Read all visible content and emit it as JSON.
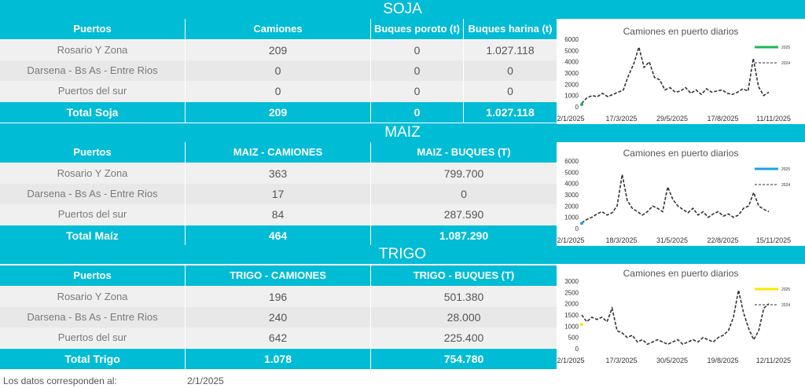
{
  "colors": {
    "accent": "#00bcd4",
    "soja_2025": "#1db954",
    "maiz_2025": "#1aa3e8",
    "trigo_2025": "#ffe600",
    "series_2024": "#333333"
  },
  "soja": {
    "title": "SOJA",
    "headers": [
      "Puertos",
      "Camiones",
      "Buques poroto (t)",
      "Buques harina (t)"
    ],
    "rows": [
      [
        "Rosario Y Zona",
        "209",
        "0",
        "1.027.118"
      ],
      [
        "Darsena - Bs As - Entre Rios",
        "0",
        "0",
        "0"
      ],
      [
        "Puertos del sur",
        "0",
        "0",
        "0"
      ]
    ],
    "total": [
      "Total Soja",
      "209",
      "0",
      "1.027.118"
    ]
  },
  "maiz": {
    "title": "MAIZ",
    "headers": [
      "Puertos",
      "MAIZ - CAMIONES",
      "MAIZ - BUQUES (T)"
    ],
    "rows": [
      [
        "Rosario Y Zona",
        "363",
        "799.700"
      ],
      [
        "Darsena - Bs As - Entre Rios",
        "17",
        "0"
      ],
      [
        "Puertos del sur",
        "84",
        "287.590"
      ]
    ],
    "total": [
      "Total Maíz",
      "464",
      "1.087.290"
    ]
  },
  "trigo": {
    "title": "TRIGO",
    "headers": [
      "Puertos",
      "TRIGO - CAMIONES",
      "TRIGO - BUQUES (T)"
    ],
    "rows": [
      [
        "Rosario Y Zona",
        "196",
        "501.380"
      ],
      [
        "Darsena - Bs As - Entre Rios",
        "240",
        "28.000"
      ],
      [
        "Puertos del sur",
        "642",
        "225.400"
      ]
    ],
    "total": [
      "Total Trigo",
      "1.078",
      "754.780"
    ]
  },
  "footer": {
    "label": "Los datos corresponden al:",
    "date": "2/1/2025"
  },
  "chart_data": [
    {
      "type": "line",
      "title": "Camiones en puerto diarios",
      "ylim": [
        0,
        6000
      ],
      "yticks": [
        "0",
        "1000",
        "2000",
        "3000",
        "4000",
        "5000",
        "6000"
      ],
      "xticks": [
        "2/1/2025",
        "17/3/2025",
        "29/5/2025",
        "17/8/2025",
        "11/11/2025"
      ],
      "legend": [
        "2025",
        "2024"
      ],
      "legend_position": "top-right",
      "series": [
        {
          "name": "2025",
          "values": [
            209
          ]
        },
        {
          "name": "2024",
          "values": [
            300,
            800,
            1000,
            900,
            1200,
            900,
            1100,
            1300,
            1500,
            2800,
            3800,
            5300,
            3500,
            4000,
            2600,
            2400,
            1500,
            1700,
            1300,
            1400,
            1700,
            1200,
            1500,
            1100,
            1600,
            1300,
            1400,
            1500,
            1200,
            1100,
            1300,
            1600,
            1400,
            4300,
            1800,
            1000,
            1300
          ]
        }
      ]
    },
    {
      "type": "line",
      "title": "Camiones en puerto diarios",
      "ylim": [
        0,
        6000
      ],
      "yticks": [
        "0",
        "1000",
        "2000",
        "3000",
        "4000",
        "5000",
        "6000"
      ],
      "xticks": [
        "2/1/2025",
        "18/3/2025",
        "31/5/2025",
        "22/8/2025",
        "15/11/2025"
      ],
      "legend": [
        "2025",
        "2024"
      ],
      "legend_position": "top-right",
      "series": [
        {
          "name": "2025",
          "values": [
            464
          ]
        },
        {
          "name": "2024",
          "values": [
            500,
            800,
            1000,
            1300,
            1500,
            1200,
            1400,
            2000,
            4800,
            2500,
            1800,
            1500,
            1200,
            1500,
            2000,
            1800,
            1500,
            3700,
            2600,
            2000,
            1700,
            1400,
            1800,
            1200,
            1500,
            1000,
            1300,
            1500,
            1100,
            1300,
            1000,
            1200,
            1800,
            2000,
            3200,
            2000,
            1700,
            1500
          ]
        }
      ]
    },
    {
      "type": "line",
      "title": "Camiones en puerto diarios",
      "ylim": [
        0,
        3000
      ],
      "yticks": [
        "0",
        "500",
        "1000",
        "1500",
        "2000",
        "2500",
        "3000"
      ],
      "xticks": [
        "2/1/2025",
        "17/3/2025",
        "30/5/2025",
        "19/8/2025",
        "12/11/2025"
      ],
      "legend": [
        "2025",
        "2024"
      ],
      "legend_position": "top-right",
      "series": [
        {
          "name": "2025",
          "values": [
            1078
          ]
        },
        {
          "name": "2024",
          "values": [
            1500,
            1200,
            1400,
            1300,
            1400,
            1200,
            1800,
            800,
            700,
            500,
            600,
            300,
            400,
            200,
            300,
            400,
            300,
            200,
            300,
            400,
            200,
            300,
            400,
            300,
            500,
            400,
            300,
            500,
            600,
            800,
            1400,
            2600,
            1600,
            900,
            400,
            800,
            1800,
            2000
          ]
        }
      ]
    }
  ]
}
